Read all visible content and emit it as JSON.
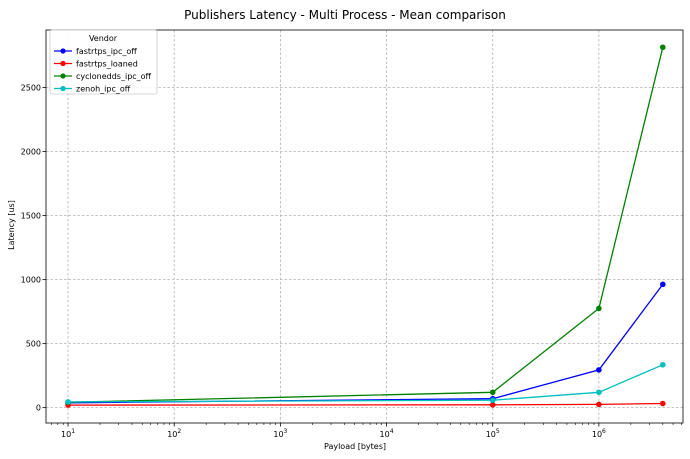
{
  "chart_data": {
    "type": "line",
    "title": "Publishers Latency - Multi Process - Mean comparison",
    "xlabel": "Payload [bytes]",
    "ylabel": "Latency [us]",
    "x_scale": "log",
    "x_ticks": [
      10,
      100,
      1000,
      10000,
      100000,
      1000000
    ],
    "x_tick_labels": [
      {
        "base": "10",
        "exp": "1"
      },
      {
        "base": "10",
        "exp": "2"
      },
      {
        "base": "10",
        "exp": "3"
      },
      {
        "base": "10",
        "exp": "4"
      },
      {
        "base": "10",
        "exp": "5"
      },
      {
        "base": "10",
        "exp": "6"
      }
    ],
    "y_ticks": [
      0,
      500,
      1000,
      1500,
      2000,
      2500
    ],
    "y_tick_labels": [
      "0",
      "500",
      "1000",
      "1500",
      "2000",
      "2500"
    ],
    "xlim": [
      6.2,
      6200000
    ],
    "ylim": [
      -120,
      2950
    ],
    "grid": true,
    "legend": {
      "title": "Vendor",
      "placement": "top-left"
    },
    "x": [
      10,
      100000,
      1000000,
      4000000
    ],
    "series": [
      {
        "name": "fastrtps_ipc_off",
        "color": "#0000ff",
        "values": [
          38,
          70,
          295,
          963
        ]
      },
      {
        "name": "fastrtps_loaned",
        "color": "#ff0000",
        "values": [
          20,
          22,
          25,
          32
        ]
      },
      {
        "name": "cyclonedds_ipc_off",
        "color": "#008000",
        "values": [
          42,
          120,
          775,
          2815
        ]
      },
      {
        "name": "zenoh_ipc_off",
        "color": "#00bfbf",
        "values": [
          45,
          58,
          120,
          335
        ]
      }
    ]
  }
}
